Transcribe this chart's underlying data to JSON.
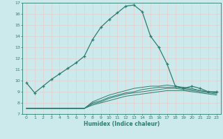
{
  "xlabel": "Humidex (Indice chaleur)",
  "xlim": [
    -0.5,
    23.5
  ],
  "ylim": [
    7,
    17
  ],
  "yticks": [
    7,
    8,
    9,
    10,
    11,
    12,
    13,
    14,
    15,
    16,
    17
  ],
  "xticks": [
    0,
    1,
    2,
    3,
    4,
    5,
    6,
    7,
    8,
    9,
    10,
    11,
    12,
    13,
    14,
    15,
    16,
    17,
    18,
    19,
    20,
    21,
    22,
    23
  ],
  "bg_color": "#cce9ec",
  "line_color": "#2e7d6e",
  "grid_color": "#b0d4d8",
  "lines": [
    {
      "x": [
        0,
        1,
        2,
        3,
        4,
        5,
        6,
        7,
        8,
        9,
        10,
        11,
        12,
        13,
        14,
        15,
        16,
        17,
        18,
        19,
        20,
        21,
        22,
        23
      ],
      "y": [
        9.8,
        8.9,
        9.5,
        10.1,
        10.6,
        11.1,
        11.6,
        12.2,
        13.7,
        14.8,
        15.5,
        16.1,
        16.7,
        16.8,
        16.2,
        14.0,
        13.0,
        11.5,
        9.5,
        9.3,
        9.5,
        9.3,
        9.0,
        9.0
      ],
      "marker": true
    },
    {
      "x": [
        0,
        1,
        2,
        3,
        4,
        5,
        6,
        7,
        8,
        9,
        10,
        11,
        12,
        13,
        14,
        15,
        16,
        17,
        18,
        19,
        20,
        21,
        22,
        23
      ],
      "y": [
        7.5,
        7.5,
        7.5,
        7.5,
        7.5,
        7.5,
        7.5,
        7.5,
        7.8,
        8.0,
        8.2,
        8.4,
        8.6,
        8.7,
        8.8,
        8.9,
        9.0,
        9.1,
        9.1,
        9.1,
        9.0,
        8.9,
        8.8,
        8.7
      ],
      "marker": false
    },
    {
      "x": [
        0,
        1,
        2,
        3,
        4,
        5,
        6,
        7,
        8,
        9,
        10,
        11,
        12,
        13,
        14,
        15,
        16,
        17,
        18,
        19,
        20,
        21,
        22,
        23
      ],
      "y": [
        7.5,
        7.5,
        7.5,
        7.5,
        7.5,
        7.5,
        7.5,
        7.5,
        7.9,
        8.1,
        8.4,
        8.6,
        8.8,
        8.9,
        9.0,
        9.1,
        9.2,
        9.3,
        9.3,
        9.2,
        9.1,
        9.0,
        8.9,
        8.8
      ],
      "marker": false
    },
    {
      "x": [
        0,
        1,
        2,
        3,
        4,
        5,
        6,
        7,
        8,
        9,
        10,
        11,
        12,
        13,
        14,
        15,
        16,
        17,
        18,
        19,
        20,
        21,
        22,
        23
      ],
      "y": [
        7.5,
        7.5,
        7.5,
        7.5,
        7.5,
        7.5,
        7.5,
        7.5,
        8.0,
        8.2,
        8.5,
        8.7,
        8.9,
        9.0,
        9.2,
        9.3,
        9.4,
        9.4,
        9.4,
        9.3,
        9.2,
        9.1,
        9.0,
        8.9
      ],
      "marker": false
    },
    {
      "x": [
        0,
        1,
        2,
        3,
        4,
        5,
        6,
        7,
        8,
        9,
        10,
        11,
        12,
        13,
        14,
        15,
        16,
        17,
        18,
        19,
        20,
        21,
        22,
        23
      ],
      "y": [
        7.5,
        7.5,
        7.5,
        7.5,
        7.5,
        7.5,
        7.5,
        7.5,
        8.1,
        8.4,
        8.7,
        8.9,
        9.1,
        9.3,
        9.4,
        9.5,
        9.5,
        9.6,
        9.5,
        9.4,
        9.3,
        9.1,
        9.0,
        8.9
      ],
      "marker": false
    }
  ]
}
